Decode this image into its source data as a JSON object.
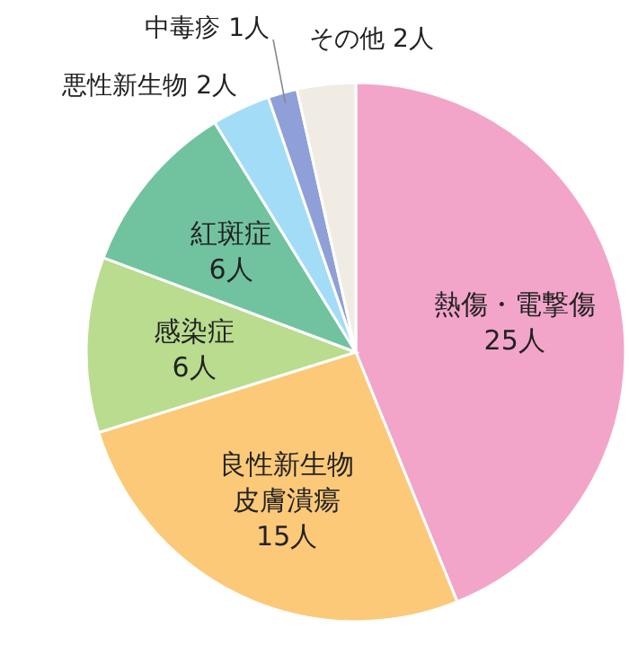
{
  "chart_data": {
    "type": "pie",
    "categories": [
      "熱傷・電撃傷",
      "良性新生物皮膚潰瘍",
      "感染症",
      "紅斑症",
      "悪性新生物",
      "中毒疹",
      "その他"
    ],
    "values": [
      25,
      15,
      6,
      6,
      2,
      1,
      2
    ],
    "value_labels": [
      "25人",
      "15人",
      "6人",
      "6人",
      "2人",
      "1人",
      "2人"
    ],
    "colors": [
      "#f2a5c9",
      "#fcc979",
      "#b9dc8e",
      "#71c3a0",
      "#a3dcf6",
      "#8f9fd8",
      "#f0ece4"
    ]
  }
}
